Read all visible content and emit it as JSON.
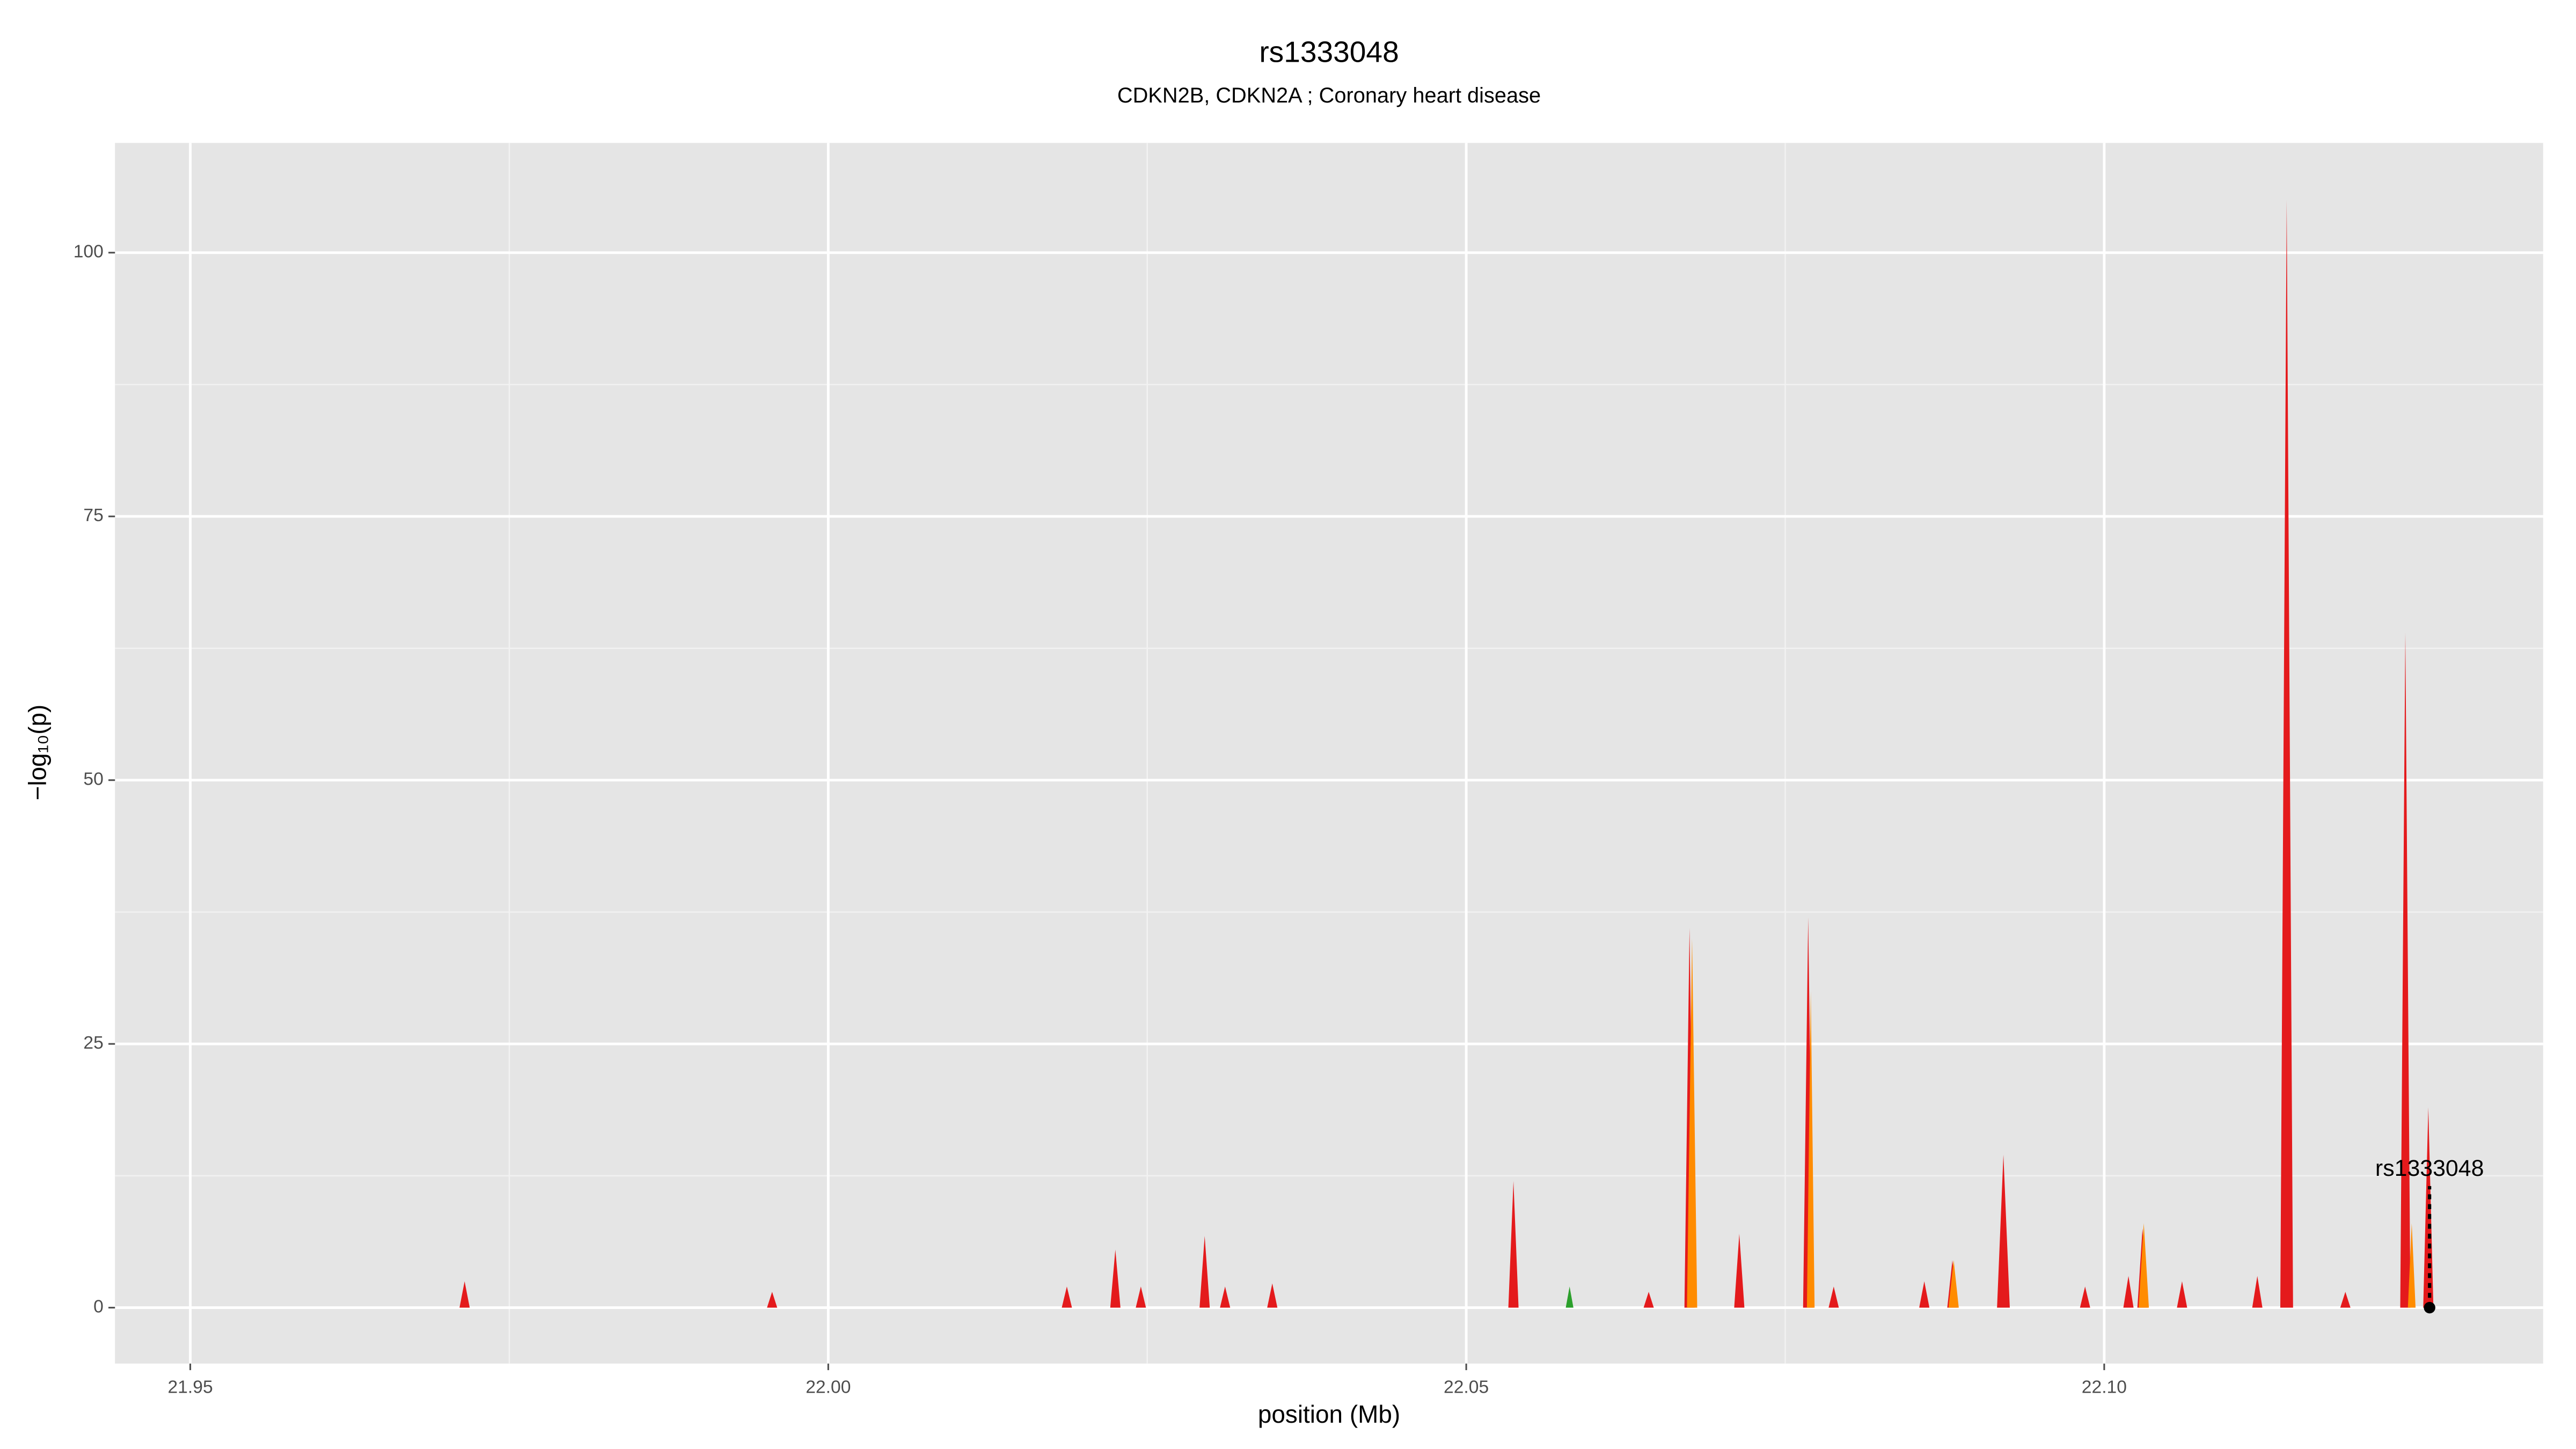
{
  "chart_data": {
    "type": "area",
    "title": "rs1333048",
    "subtitle": "CDKN2B, CDKN2A ; Coronary heart disease",
    "xlabel": "position (Mb)",
    "ylabel": "−log₁₀(p)",
    "xlim": [
      21.9441,
      22.1344
    ],
    "ylim": [
      -5.3,
      110.4
    ],
    "xticks": [
      21.95,
      {
        "value": 22,
        "label": "22.00"
      },
      22.05,
      {
        "value": 22.1,
        "label": "22.10"
      }
    ],
    "yticks": [
      0,
      25,
      50,
      75,
      100
    ],
    "grid": true,
    "series": [
      {
        "color": "#e41a1c",
        "x": [
          21.9529,
          21.9711,
          21.9715,
          21.9719,
          21.9952,
          21.9956,
          21.996,
          22.0183,
          22.0187,
          22.0191,
          22.0221,
          22.0225,
          22.0229,
          22.0241,
          22.0245,
          22.0249,
          22.0291,
          22.0295,
          22.0299,
          22.0307,
          22.0311,
          22.0315,
          22.0344,
          22.0348,
          22.0352,
          22.0533,
          22.0537,
          22.0541,
          22.0639,
          22.0643,
          22.0647,
          22.0671,
          22.0675,
          22.0679,
          22.071,
          22.0714,
          22.0718,
          22.0764,
          22.0768,
          22.0772,
          22.0784,
          22.0788,
          22.0792,
          22.0855,
          22.0859,
          22.0863,
          22.0877,
          22.0881,
          22.0885,
          22.0916,
          22.0921,
          22.0926,
          22.0981,
          22.0985,
          22.0989,
          22.1015,
          22.1019,
          22.1023,
          22.1026,
          22.103,
          22.1034,
          22.1057,
          22.1061,
          22.1065,
          22.1116,
          22.112,
          22.1124,
          22.1138,
          22.1143,
          22.1148,
          22.1185,
          22.1189,
          22.1193,
          22.1232,
          22.1236,
          22.124,
          22.125,
          22.1254,
          22.1258
        ],
        "values": [
          0,
          0,
          2.5,
          0,
          0,
          1.5,
          0,
          0,
          2,
          0,
          0,
          5.5,
          0,
          0,
          2,
          0,
          0,
          6.8,
          0,
          0,
          2,
          0,
          0,
          2.3,
          0,
          0,
          12,
          0,
          0,
          1.5,
          0,
          0,
          36,
          0,
          0,
          7,
          0,
          0,
          37,
          0,
          0,
          2,
          0,
          0,
          2.5,
          0,
          0,
          4.5,
          0,
          0,
          14.5,
          0,
          0,
          2,
          0,
          0,
          3,
          0,
          0,
          7.5,
          0,
          0,
          2.5,
          0,
          0,
          3,
          0,
          0,
          105,
          0,
          0,
          1.5,
          0,
          0,
          64,
          0,
          0,
          19,
          0
        ]
      },
      {
        "color": "#ff8c00",
        "x": [
          22.0673,
          22.0677,
          22.0681,
          22.0767,
          22.077,
          22.0773,
          22.0878,
          22.0882,
          22.0886,
          22.1027,
          22.1031,
          22.1035,
          22.1238,
          22.1241,
          22.1244
        ],
        "values": [
          0,
          35,
          0,
          0,
          30,
          0,
          0,
          4.5,
          0,
          0,
          8,
          0,
          0,
          8,
          0
        ]
      },
      {
        "color": "#2ca02c",
        "x": [
          22.0578,
          22.0581,
          22.0584
        ],
        "values": [
          0,
          2,
          0
        ]
      }
    ],
    "annotation": {
      "text": "rs1333048",
      "x": 22.1255,
      "y": 0
    }
  }
}
